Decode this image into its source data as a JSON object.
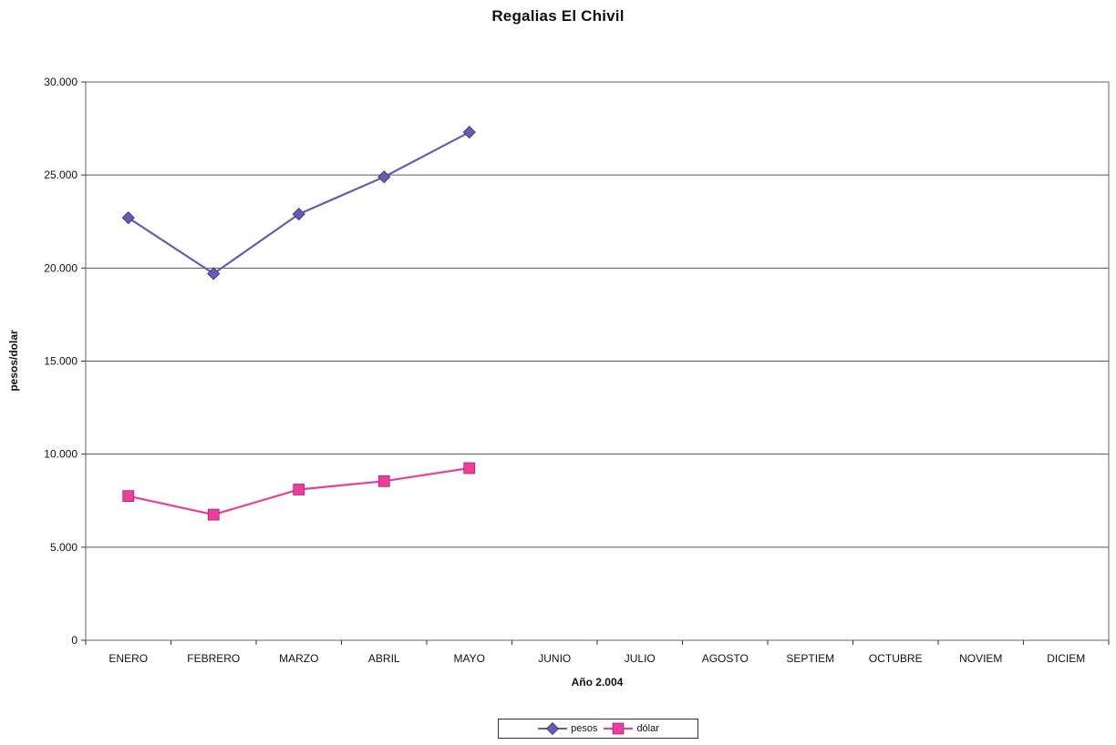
{
  "chart_data": {
    "type": "line",
    "title": "Regalias El Chivil",
    "xlabel": "Año 2.004",
    "ylabel": "pesos/dolar",
    "categories": [
      "ENERO",
      "FEBRERO",
      "MARZO",
      "ABRIL",
      "MAYO",
      "JUNIO",
      "JULIO",
      "AGOSTO",
      "SEPTIEM",
      "OCTUBRE",
      "NOVIEM",
      "DICIEM"
    ],
    "ylim": [
      0,
      30000
    ],
    "yticks": [
      0,
      5000,
      10000,
      15000,
      20000,
      25000,
      30000
    ],
    "ytick_labels": [
      "0",
      "5.000",
      "10.000",
      "15.000",
      "20.000",
      "25.000",
      "30.000"
    ],
    "grid": true,
    "legend_position": "bottom-center",
    "series": [
      {
        "name": "pesos",
        "color": "#6b5bb0",
        "marker": "diamond",
        "values": [
          22700,
          19700,
          22900,
          24900,
          27300,
          null,
          null,
          null,
          null,
          null,
          null,
          null
        ]
      },
      {
        "name": "dólar",
        "color": "#e8409a",
        "marker": "square",
        "values": [
          7750,
          6750,
          8100,
          8550,
          9250,
          null,
          null,
          null,
          null,
          null,
          null,
          null
        ]
      }
    ]
  }
}
